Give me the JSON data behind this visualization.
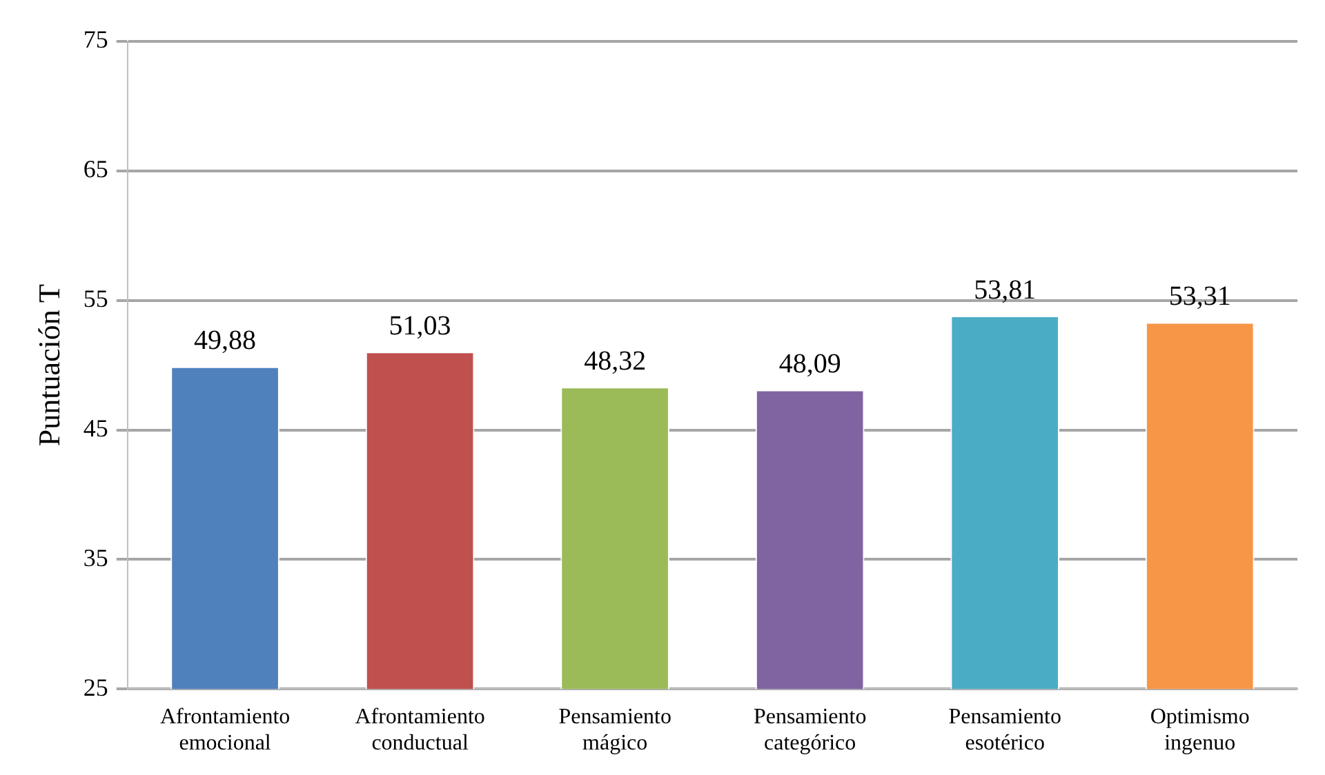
{
  "chart_data": {
    "type": "bar",
    "ylabel": "Puntuación T",
    "categories": [
      "Afrontamiento emocional",
      "Afrontamiento conductual",
      "Pensamiento mágico",
      "Pensamiento categórico",
      "Pensamiento esotérico",
      "Optimismo ingenuo"
    ],
    "values": [
      49.88,
      51.03,
      48.32,
      48.09,
      53.81,
      53.31
    ],
    "value_labels": [
      "49,88",
      "51,03",
      "48,32",
      "48,09",
      "53,81",
      "53,31"
    ],
    "colors": [
      "#4f81bd",
      "#c0504d",
      "#9bbb59",
      "#8064a2",
      "#4bacc6",
      "#f79646"
    ],
    "ylim": [
      25,
      75
    ],
    "yticks": [
      25,
      35,
      45,
      55,
      65,
      75
    ],
    "grid": "y",
    "legend": false
  }
}
